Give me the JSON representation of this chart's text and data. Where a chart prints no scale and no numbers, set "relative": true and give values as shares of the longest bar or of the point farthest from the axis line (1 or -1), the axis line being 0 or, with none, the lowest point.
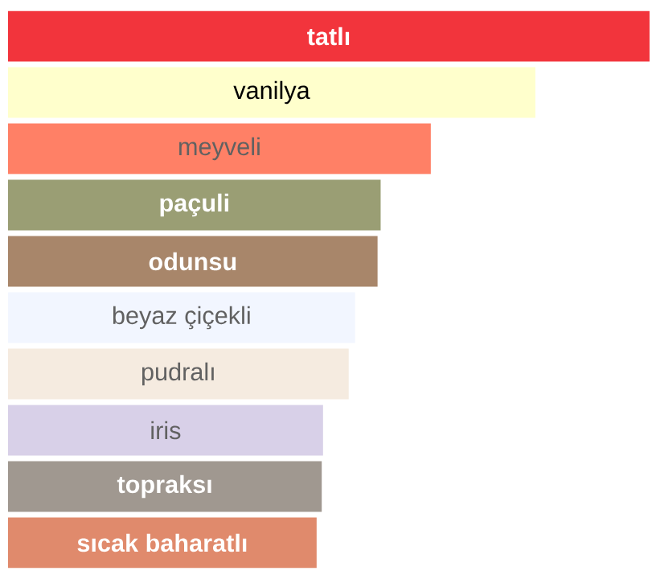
{
  "chart_data": {
    "type": "bar",
    "orientation": "horizontal",
    "relative": true,
    "categories": [
      "tatlı",
      "vanilya",
      "meyveli",
      "paçuli",
      "odunsu",
      "beyaz çiçekli",
      "pudralı",
      "iris",
      "topraksı",
      "sıcak baharatlı"
    ],
    "values": [
      1,
      0.822,
      0.659,
      0.581,
      0.576,
      0.541,
      0.531,
      0.491,
      0.489,
      0.481
    ],
    "colors": [
      "#f2343c",
      "#ffffcc",
      "#ff8066",
      "#9a9e74",
      "#a8866a",
      "#f2f6ff",
      "#f5ebe0",
      "#d8d0e8",
      "#a09890",
      "#e08a6c"
    ]
  }
}
